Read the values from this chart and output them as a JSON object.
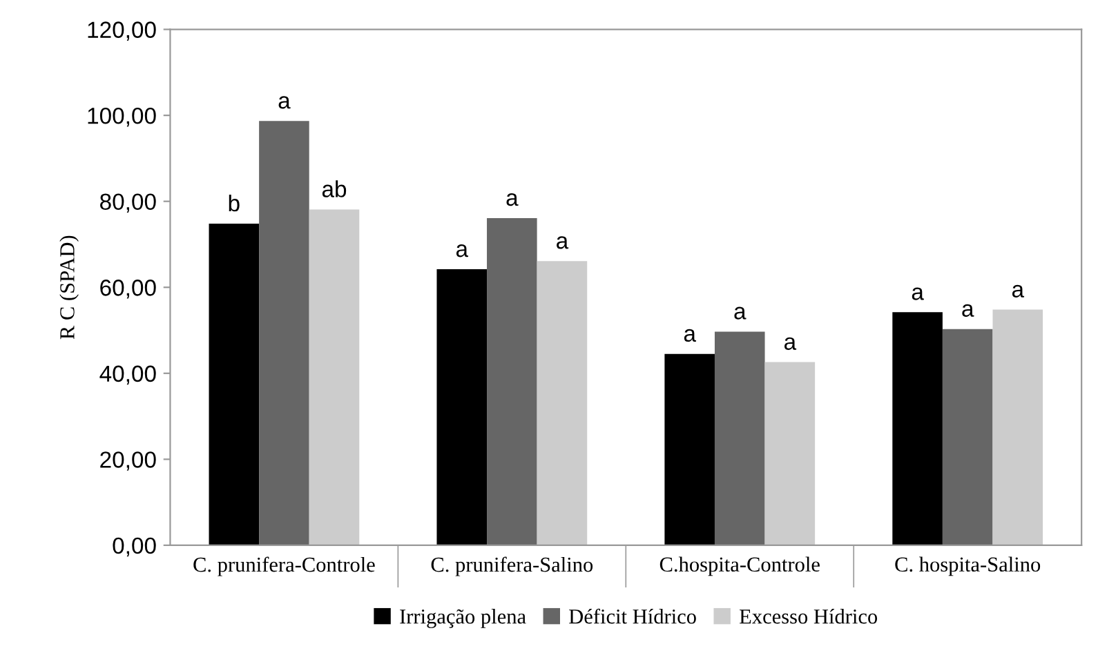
{
  "chart_data": {
    "type": "bar",
    "ylabel": "R C (SPAD)",
    "categories": [
      "C. prunifera-Controle",
      "C. prunifera-Salino",
      "C.hospita-Controle",
      "C. hospita-Salino"
    ],
    "series": [
      {
        "name": "Irrigação plena",
        "color": "#000000",
        "values": [
          74.8,
          64.2,
          44.5,
          54.2
        ],
        "value_labels": [
          "b",
          "a",
          "a",
          "a"
        ]
      },
      {
        "name": "Déficit Hídrico",
        "color": "#666666",
        "values": [
          98.7,
          76.1,
          49.7,
          50.3
        ],
        "value_labels": [
          "a",
          "a",
          "a",
          "a"
        ]
      },
      {
        "name": "Excesso Hídrico",
        "color": "#cccccc",
        "values": [
          78.1,
          66.1,
          42.6,
          54.8
        ],
        "value_labels": [
          "ab",
          "a",
          "a",
          "a"
        ]
      }
    ],
    "ylim": [
      0,
      120
    ],
    "yticks": [
      {
        "value": 0,
        "label": "0,00"
      },
      {
        "value": 20,
        "label": "20,00"
      },
      {
        "value": 40,
        "label": "40,00"
      },
      {
        "value": 60,
        "label": "60,00"
      },
      {
        "value": 80,
        "label": "80,00"
      },
      {
        "value": 100,
        "label": "100,00"
      },
      {
        "value": 120,
        "label": "120,00"
      }
    ],
    "grid": false,
    "legend": "bottom"
  }
}
